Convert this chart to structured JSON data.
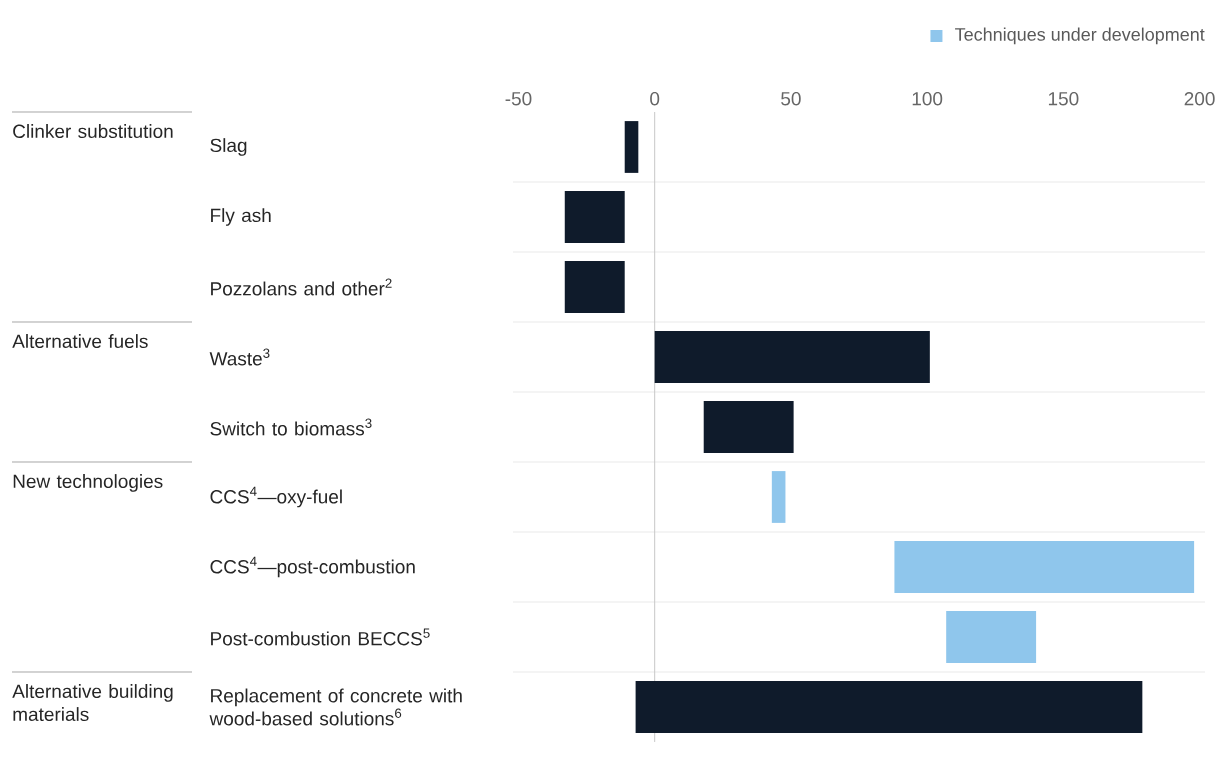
{
  "chart_data": {
    "type": "bar",
    "orientation": "horizontal",
    "categories": [
      "Slag",
      "Fly ash",
      "Pozzolans and other$^{2}$",
      "Waste$^{3}$",
      "Switch to biomass$^{3}$",
      "CCS$^{4}$—oxy-fuel",
      "CCS$^{4}$—post-combustion",
      "Post-combustion BECCS$^{5}$",
      "Replacement of concrete with wood-based solutions$^{6}$"
    ],
    "series": [
      {
        "color": "#0f1b2b",
        "base": [
          -11,
          -33,
          -33,
          0,
          18,
          null,
          null,
          null,
          -7
        ],
        "values": [
          5,
          22,
          22,
          101,
          33,
          null,
          null,
          null,
          186
        ]
      },
      {
        "name": "Techniques under development",
        "color": "#8fc6ec",
        "base": [
          null,
          null,
          null,
          null,
          null,
          43,
          88,
          107,
          null
        ],
        "values": [
          null,
          null,
          null,
          null,
          null,
          5,
          110,
          33,
          null
        ]
      }
    ],
    "xlim": [
      -52,
      202
    ],
    "xticks": [
      -50,
      0,
      50,
      100,
      150,
      200
    ],
    "ref_lines": [
      {
        "axis": "x",
        "value": 0,
        "color": "#c8c8c8"
      }
    ],
    "grid": "y",
    "legend": "top right",
    "annotations": [
      "Clinker substitution",
      "Alternative fuels",
      "New technologies",
      "Alternative building materials"
    ]
  }
}
